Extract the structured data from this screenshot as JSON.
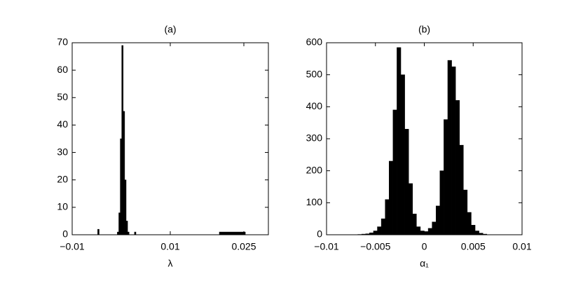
{
  "chart_data": [
    {
      "type": "histogram",
      "title": "(a)",
      "x_label": "λ",
      "color": "#000000",
      "bins": [
        -0.01,
        -0.0048,
        -0.0045,
        -0.0008,
        -0.0005,
        -0.0002,
        0.0001,
        0.0004,
        0.0007,
        0.001,
        0.0013,
        0.0016,
        0.0019,
        0.0027,
        0.003,
        0.02,
        0.0253,
        0.03
      ],
      "counts": [
        0,
        2,
        0,
        1,
        8,
        35,
        69,
        45,
        20,
        5,
        1,
        0,
        0,
        1,
        0,
        1,
        0
      ],
      "xlim": [
        -0.01,
        0.03
      ],
      "xticks": [
        {
          "value": -0.01,
          "label": "−0.01"
        },
        0.01,
        0.025
      ],
      "ylim": [
        0,
        70
      ],
      "yticks": [
        0,
        10,
        20,
        30,
        40,
        50,
        60,
        70
      ]
    },
    {
      "type": "histogram",
      "title": "(b)",
      "x_label": "α₁",
      "color": "#000000",
      "bins": [
        -0.01,
        -0.0096,
        -0.0092,
        -0.0088,
        -0.0084,
        -0.008,
        -0.0076,
        -0.0072,
        -0.0068,
        -0.0064,
        -0.006,
        -0.0056,
        -0.0052,
        -0.0048,
        -0.0044,
        -0.004,
        -0.0036,
        -0.0032,
        -0.0028,
        -0.0024,
        -0.002,
        -0.0016,
        -0.0012,
        -0.0008,
        -0.0004,
        0,
        0.0004,
        0.0008,
        0.0012,
        0.0016,
        0.002,
        0.0024,
        0.0028,
        0.0032,
        0.0036,
        0.004,
        0.0044,
        0.0048,
        0.0052,
        0.0056,
        0.006,
        0.0064,
        0.0068,
        0.0072,
        0.0076,
        0.008,
        0.0084,
        0.0088,
        0.0092,
        0.0096,
        0.01
      ],
      "counts": [
        0,
        0,
        0,
        0,
        0,
        0,
        0,
        0,
        1,
        2,
        3,
        6,
        12,
        25,
        50,
        110,
        230,
        390,
        585,
        500,
        330,
        160,
        65,
        25,
        12,
        10,
        20,
        40,
        90,
        200,
        360,
        545,
        525,
        420,
        280,
        140,
        70,
        30,
        12,
        5,
        2,
        0,
        0,
        0,
        0,
        0,
        0,
        0,
        0,
        0
      ],
      "xlim": [
        -0.01,
        0.01
      ],
      "xticks": [
        {
          "value": -0.01,
          "label": "−0.01"
        },
        {
          "value": -0.005,
          "label": "−0.005"
        },
        0,
        0.005,
        0.01
      ],
      "ylim": [
        0,
        600
      ],
      "yticks": [
        0,
        100,
        200,
        300,
        400,
        500,
        600
      ]
    }
  ]
}
